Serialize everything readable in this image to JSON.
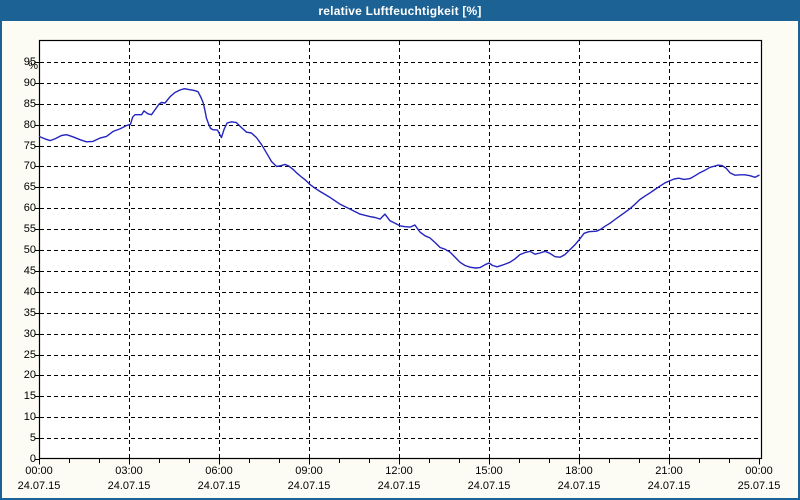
{
  "window": {
    "title": "relative Luftfeuchtigkeit [%]"
  },
  "colors": {
    "frame_blue": "#1D6295",
    "title_text": "#FFFFFF",
    "background": "#FCFCF4",
    "plot_background": "#FFFFFF",
    "grid_line": "#000000",
    "axis_line": "#000000",
    "tick_label": "#000000",
    "series_line": "#2424BE"
  },
  "chart_data": {
    "type": "line",
    "title": "relative Luftfeuchtigkeit [%]",
    "xlabel": "",
    "ylabel": "%",
    "ylim": [
      0,
      100
    ],
    "y_tick_min": 0,
    "y_tick_max": 95,
    "y_tick_step": 5,
    "grid": "dashed-black",
    "legend": "none",
    "x_axis": {
      "unit": "time",
      "minor_tick_hours": 1,
      "xlim_hours": [
        0,
        24.1
      ],
      "major_ticks": [
        {
          "hour": 0,
          "time": "00:00",
          "date": "24.07.15"
        },
        {
          "hour": 3,
          "time": "03:00",
          "date": "24.07.15"
        },
        {
          "hour": 6,
          "time": "06:00",
          "date": "24.07.15"
        },
        {
          "hour": 9,
          "time": "09:00",
          "date": "24.07.15"
        },
        {
          "hour": 12,
          "time": "12:00",
          "date": "24.07.15"
        },
        {
          "hour": 15,
          "time": "15:00",
          "date": "24.07.15"
        },
        {
          "hour": 18,
          "time": "18:00",
          "date": "24.07.15"
        },
        {
          "hour": 21,
          "time": "21:00",
          "date": "24.07.15"
        },
        {
          "hour": 24,
          "time": "00:00",
          "date": "25.07.15"
        }
      ]
    },
    "series": [
      {
        "name": "relative Luftfeuchtigkeit",
        "unit": "%",
        "points_hour_value": [
          [
            0.0,
            77.2
          ],
          [
            0.2,
            76.6
          ],
          [
            0.37,
            76.2
          ],
          [
            0.53,
            76.6
          ],
          [
            0.75,
            77.4
          ],
          [
            0.92,
            77.6
          ],
          [
            1.13,
            77.1
          ],
          [
            1.37,
            76.4
          ],
          [
            1.58,
            75.9
          ],
          [
            1.8,
            76.0
          ],
          [
            2.03,
            76.8
          ],
          [
            2.25,
            77.2
          ],
          [
            2.47,
            78.4
          ],
          [
            2.7,
            79.0
          ],
          [
            2.92,
            79.8
          ],
          [
            3.05,
            80.1
          ],
          [
            3.12,
            81.8
          ],
          [
            3.2,
            82.4
          ],
          [
            3.42,
            82.4
          ],
          [
            3.5,
            83.3
          ],
          [
            3.63,
            82.6
          ],
          [
            3.75,
            82.4
          ],
          [
            3.87,
            83.6
          ],
          [
            4.0,
            84.9
          ],
          [
            4.08,
            85.3
          ],
          [
            4.2,
            85.2
          ],
          [
            4.37,
            86.7
          ],
          [
            4.53,
            87.7
          ],
          [
            4.7,
            88.3
          ],
          [
            4.85,
            88.6
          ],
          [
            5.0,
            88.4
          ],
          [
            5.17,
            88.2
          ],
          [
            5.3,
            87.9
          ],
          [
            5.4,
            86.5
          ],
          [
            5.47,
            85.3
          ],
          [
            5.53,
            83.5
          ],
          [
            5.58,
            81.6
          ],
          [
            5.65,
            80.2
          ],
          [
            5.72,
            79.1
          ],
          [
            5.8,
            78.8
          ],
          [
            5.95,
            78.7
          ],
          [
            6.08,
            76.9
          ],
          [
            6.17,
            78.9
          ],
          [
            6.27,
            80.4
          ],
          [
            6.42,
            80.7
          ],
          [
            6.58,
            80.5
          ],
          [
            6.75,
            79.3
          ],
          [
            6.92,
            78.2
          ],
          [
            7.08,
            78.0
          ],
          [
            7.25,
            76.9
          ],
          [
            7.42,
            75.2
          ],
          [
            7.58,
            73.3
          ],
          [
            7.75,
            71.2
          ],
          [
            7.92,
            70.0
          ],
          [
            8.08,
            70.2
          ],
          [
            8.2,
            70.5
          ],
          [
            8.33,
            70.1
          ],
          [
            8.47,
            69.3
          ],
          [
            8.6,
            68.4
          ],
          [
            8.73,
            67.6
          ],
          [
            8.87,
            66.8
          ],
          [
            9.03,
            65.7
          ],
          [
            9.2,
            64.8
          ],
          [
            9.37,
            64.0
          ],
          [
            9.7,
            62.6
          ],
          [
            10.03,
            61.0
          ],
          [
            10.37,
            59.8
          ],
          [
            10.7,
            58.6
          ],
          [
            11.03,
            58.0
          ],
          [
            11.2,
            57.8
          ],
          [
            11.37,
            57.4
          ],
          [
            11.53,
            58.6
          ],
          [
            11.7,
            57.0
          ],
          [
            11.87,
            56.4
          ],
          [
            12.03,
            55.8
          ],
          [
            12.2,
            55.6
          ],
          [
            12.37,
            55.5
          ],
          [
            12.53,
            56.0
          ],
          [
            12.7,
            54.3
          ],
          [
            12.87,
            53.4
          ],
          [
            13.03,
            52.9
          ],
          [
            13.2,
            51.8
          ],
          [
            13.37,
            50.6
          ],
          [
            13.53,
            50.2
          ],
          [
            13.7,
            49.5
          ],
          [
            13.87,
            48.3
          ],
          [
            14.03,
            47.1
          ],
          [
            14.2,
            46.3
          ],
          [
            14.37,
            45.9
          ],
          [
            14.55,
            45.7
          ],
          [
            14.7,
            45.8
          ],
          [
            14.87,
            46.5
          ],
          [
            15.0,
            46.9
          ],
          [
            15.12,
            46.3
          ],
          [
            15.27,
            46.0
          ],
          [
            15.45,
            46.4
          ],
          [
            15.7,
            47.1
          ],
          [
            15.87,
            47.9
          ],
          [
            16.03,
            48.9
          ],
          [
            16.2,
            49.4
          ],
          [
            16.37,
            49.7
          ],
          [
            16.53,
            49.0
          ],
          [
            16.7,
            49.3
          ],
          [
            16.87,
            49.7
          ],
          [
            17.03,
            49.2
          ],
          [
            17.2,
            48.4
          ],
          [
            17.37,
            48.3
          ],
          [
            17.53,
            48.9
          ],
          [
            17.7,
            50.1
          ],
          [
            17.87,
            51.3
          ],
          [
            18.0,
            52.4
          ],
          [
            18.17,
            54.0
          ],
          [
            18.33,
            54.4
          ],
          [
            18.58,
            54.5
          ],
          [
            18.73,
            55.0
          ],
          [
            18.87,
            55.7
          ],
          [
            19.03,
            56.4
          ],
          [
            19.2,
            57.3
          ],
          [
            19.37,
            58.2
          ],
          [
            19.53,
            59.0
          ],
          [
            19.7,
            59.9
          ],
          [
            19.87,
            61.0
          ],
          [
            20.03,
            62.1
          ],
          [
            20.2,
            62.9
          ],
          [
            20.37,
            63.7
          ],
          [
            20.53,
            64.5
          ],
          [
            20.7,
            65.3
          ],
          [
            20.87,
            66.1
          ],
          [
            21.0,
            66.5
          ],
          [
            21.17,
            67.0
          ],
          [
            21.33,
            67.2
          ],
          [
            21.5,
            66.9
          ],
          [
            21.7,
            67.1
          ],
          [
            21.87,
            67.8
          ],
          [
            22.03,
            68.5
          ],
          [
            22.2,
            69.1
          ],
          [
            22.37,
            69.8
          ],
          [
            22.53,
            70.1
          ],
          [
            22.63,
            70.3
          ],
          [
            22.77,
            70.2
          ],
          [
            22.9,
            69.6
          ],
          [
            23.03,
            68.5
          ],
          [
            23.2,
            67.9
          ],
          [
            23.37,
            68.0
          ],
          [
            23.53,
            68.0
          ],
          [
            23.7,
            67.8
          ],
          [
            23.87,
            67.4
          ],
          [
            24.0,
            67.9
          ]
        ]
      }
    ]
  }
}
